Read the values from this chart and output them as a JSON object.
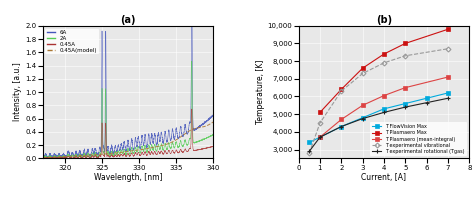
{
  "left": {
    "title": "(a)",
    "xlabel": "Wavelength, [nm]",
    "ylabel": "Intensity, [a.u.]",
    "xlim": [
      317,
      340
    ],
    "ylim": [
      0,
      2.0
    ],
    "yticks": [
      0.0,
      0.2,
      0.4,
      0.6,
      0.8,
      1.0,
      1.2,
      1.4,
      1.6,
      1.8,
      2.0
    ],
    "xticks": [
      320,
      325,
      330,
      335,
      340
    ],
    "legend": [
      "6A",
      "2A",
      "0.45A",
      "0.45A(model)"
    ],
    "colors_6A": "#4455bb",
    "colors_2A": "#55cc55",
    "colors_045A": "#aa3333",
    "colors_model": "#aa7733",
    "bg_color": "#e8e8e8"
  },
  "right": {
    "title": "(b)",
    "xlabel": "Current, [A]",
    "ylabel": "Temperature, [K]",
    "xlim": [
      0,
      8
    ],
    "ylim": [
      2500,
      10000
    ],
    "yticks": [
      3000,
      4000,
      5000,
      6000,
      7000,
      8000,
      9000,
      10000
    ],
    "xticks": [
      0,
      1,
      2,
      3,
      4,
      5,
      6,
      7,
      8
    ],
    "T_flowvision_x": [
      0.5,
      1,
      2,
      3,
      4,
      5,
      6,
      7
    ],
    "T_flowvision_y": [
      3400,
      3700,
      4300,
      4800,
      5300,
      5600,
      5900,
      6200
    ],
    "T_flowvision_color": "#00aadd",
    "T_plasmaero_max_x": [
      1,
      2,
      3,
      4,
      5,
      7
    ],
    "T_plasmaero_max_y": [
      5100,
      6400,
      7600,
      8400,
      9000,
      9800
    ],
    "T_plasmaero_max_color": "#cc1111",
    "T_plasmaero_mean_x": [
      1,
      2,
      3,
      4,
      5,
      7
    ],
    "T_plasmaero_mean_y": [
      3700,
      4700,
      5500,
      6050,
      6500,
      7100
    ],
    "T_plasmaero_mean_color": "#dd4444",
    "T_exp_vib_x": [
      0.5,
      1,
      2,
      3,
      4,
      5,
      7
    ],
    "T_exp_vib_y": [
      2800,
      4500,
      6300,
      7300,
      7900,
      8300,
      8700
    ],
    "T_exp_vib_color": "#999999",
    "T_exp_rot_x": [
      0.5,
      1,
      2,
      3,
      4,
      5,
      6,
      7
    ],
    "T_exp_rot_y": [
      2900,
      3700,
      4300,
      4750,
      5100,
      5400,
      5650,
      5900
    ],
    "T_exp_rot_color": "#222222",
    "bg_color": "#e8e8e8"
  }
}
